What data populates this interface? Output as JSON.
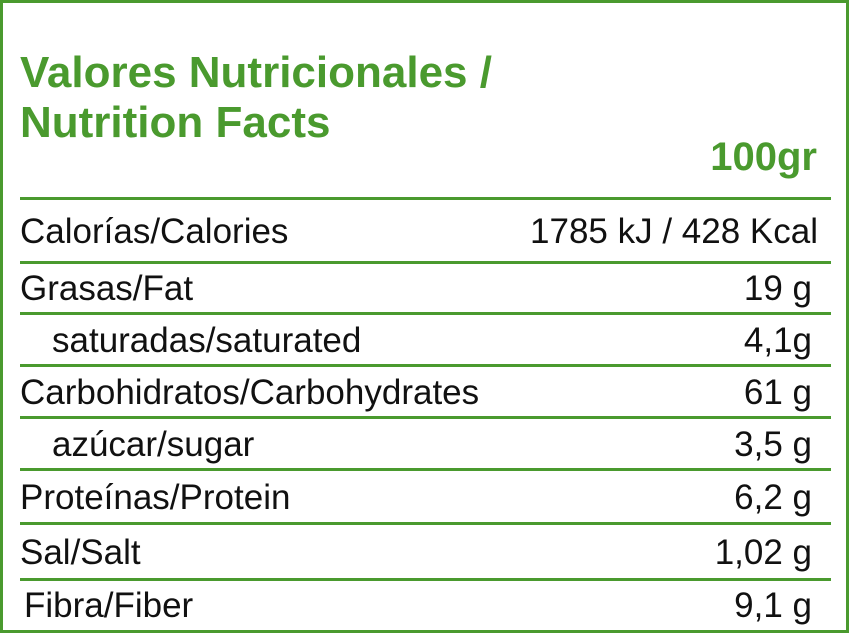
{
  "title_line1": "Valores Nutricionales /",
  "title_line2": "Nutrition Facts",
  "serving": "100gr",
  "accent_color": "#4a9a2e",
  "rows": [
    {
      "label": "Calorías/Calories",
      "value": "1785 kJ / 428 Kcal",
      "sub": false
    },
    {
      "label": "Grasas/Fat",
      "value": "19 g",
      "sub": false
    },
    {
      "label": "saturadas/saturated",
      "value": "4,1g",
      "sub": true
    },
    {
      "label": "Carbohidratos/Carbohydrates",
      "value": "61 g",
      "sub": false
    },
    {
      "label": "azúcar/sugar",
      "value": "3,5 g",
      "sub": true
    },
    {
      "label": "Proteínas/Protein",
      "value": "6,2 g",
      "sub": false
    },
    {
      "label": "Sal/Salt",
      "value": "1,02 g",
      "sub": false
    },
    {
      "label": "Fibra/Fiber",
      "value": "9,1 g",
      "sub": false
    }
  ]
}
